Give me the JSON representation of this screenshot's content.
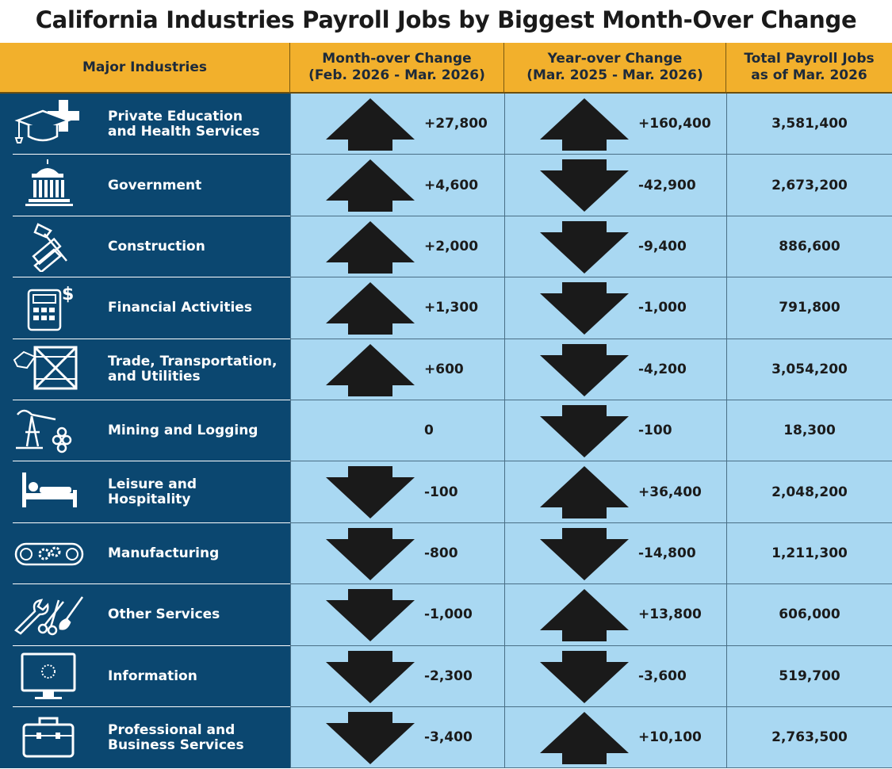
{
  "title": "California Industries Payroll Jobs by Biggest Month-Over Change",
  "colors": {
    "header_bg": "#f2b02c",
    "industry_bg": "#0b4770",
    "value_bg": "#a9d8f2",
    "arrow": "#1a1a1a"
  },
  "headers": {
    "industry": "Major Industries",
    "mom_line1": "Month-over Change",
    "mom_line2": "(Feb. 2026 - Mar. 2026)",
    "yoy_line1": "Year-over Change",
    "yoy_line2": "(Mar. 2025 - Mar. 2026)",
    "total_line1": "Total Payroll Jobs",
    "total_line2": "as of Mar. 2026"
  },
  "rows": [
    {
      "label_line1": "Private Education",
      "label_line2": "and Health Services",
      "icon": "graduation-cap-medical-cross-icon",
      "mom": "+27,800",
      "mom_dir": "up",
      "yoy": "+160,400",
      "yoy_dir": "up",
      "total": "3,581,400"
    },
    {
      "label_line1": "Government",
      "label_line2": "",
      "icon": "capitol-building-icon",
      "mom": "+4,600",
      "mom_dir": "up",
      "yoy": "-42,900",
      "yoy_dir": "down",
      "total": "2,673,200"
    },
    {
      "label_line1": "Construction",
      "label_line2": "",
      "icon": "hammer-ruler-icon",
      "mom": "+2,000",
      "mom_dir": "up",
      "yoy": "-9,400",
      "yoy_dir": "down",
      "total": "886,600"
    },
    {
      "label_line1": "Financial Activities",
      "label_line2": "",
      "icon": "calculator-dollar-icon",
      "mom": "+1,300",
      "mom_dir": "up",
      "yoy": "-1,000",
      "yoy_dir": "down",
      "total": "791,800"
    },
    {
      "label_line1": "Trade, Transportation,",
      "label_line2": "and Utilities",
      "icon": "shipping-crate-tag-icon",
      "mom": "+600",
      "mom_dir": "up",
      "yoy": "-4,200",
      "yoy_dir": "down",
      "total": "3,054,200"
    },
    {
      "label_line1": "Mining and Logging",
      "label_line2": "",
      "icon": "oil-pump-logs-icon",
      "mom": "0",
      "mom_dir": "none",
      "yoy": "-100",
      "yoy_dir": "down",
      "total": "18,300"
    },
    {
      "label_line1": "Leisure and Hospitality",
      "label_line2": "",
      "icon": "bed-icon",
      "mom": "-100",
      "mom_dir": "down",
      "yoy": "+36,400",
      "yoy_dir": "up",
      "total": "2,048,200"
    },
    {
      "label_line1": "Manufacturing",
      "label_line2": "",
      "icon": "conveyor-gears-icon",
      "mom": "-800",
      "mom_dir": "down",
      "yoy": "-14,800",
      "yoy_dir": "down",
      "total": "1,211,300"
    },
    {
      "label_line1": "Other Services",
      "label_line2": "",
      "icon": "wrench-scissors-brush-icon",
      "mom": "-1,000",
      "mom_dir": "down",
      "yoy": "+13,800",
      "yoy_dir": "up",
      "total": "606,000"
    },
    {
      "label_line1": "Information",
      "label_line2": "",
      "icon": "computer-monitor-icon",
      "mom": "-2,300",
      "mom_dir": "down",
      "yoy": "-3,600",
      "yoy_dir": "down",
      "total": "519,700"
    },
    {
      "label_line1": "Professional and",
      "label_line2": "Business Services",
      "icon": "briefcase-icon",
      "mom": "-3,400",
      "mom_dir": "down",
      "yoy": "+10,100",
      "yoy_dir": "up",
      "total": "2,763,500"
    }
  ],
  "chart_data": {
    "type": "table",
    "title": "California Industries Payroll Jobs by Biggest Month-Over Change",
    "columns": [
      "Major Industries",
      "Month-over Change (Feb. 2026 - Mar. 2026)",
      "Year-over Change (Mar. 2025 - Mar. 2026)",
      "Total Payroll Jobs as of Mar. 2026"
    ],
    "categories": [
      "Private Education and Health Services",
      "Government",
      "Construction",
      "Financial Activities",
      "Trade, Transportation, and Utilities",
      "Mining and Logging",
      "Leisure and Hospitality",
      "Manufacturing",
      "Other Services",
      "Information",
      "Professional and Business Services"
    ],
    "series": [
      {
        "name": "Month-over Change (Feb. 2026 - Mar. 2026)",
        "values": [
          27800,
          4600,
          2000,
          1300,
          600,
          0,
          -100,
          -800,
          -1000,
          -2300,
          -3400
        ]
      },
      {
        "name": "Year-over Change (Mar. 2025 - Mar. 2026)",
        "values": [
          160400,
          -42900,
          -9400,
          -1000,
          -4200,
          -100,
          36400,
          -14800,
          13800,
          -3600,
          10100
        ]
      },
      {
        "name": "Total Payroll Jobs as of Mar. 2026",
        "values": [
          3581400,
          2673200,
          886600,
          791800,
          3054200,
          18300,
          2048200,
          1211300,
          606000,
          519700,
          2763500
        ]
      }
    ]
  }
}
